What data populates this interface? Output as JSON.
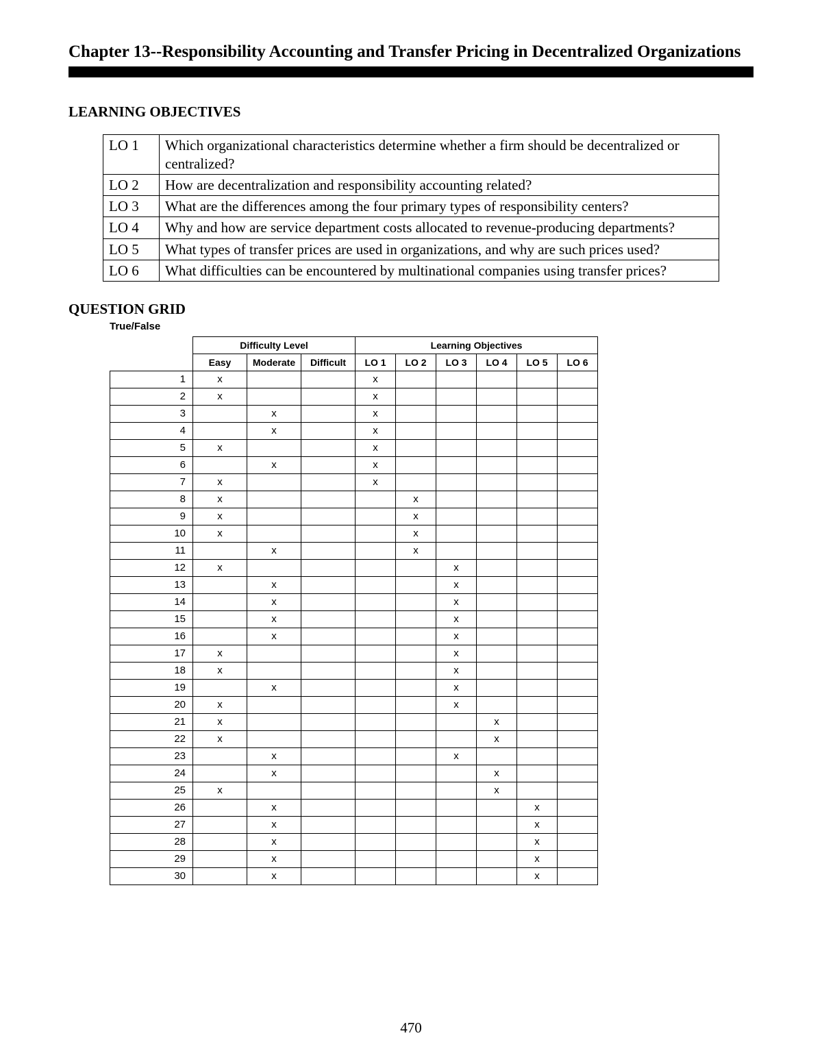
{
  "chapter_title": "Chapter 13--Responsibility Accounting and Transfer Pricing in Decentralized Organizations",
  "section_learning_objectives_heading": "LEARNING OBJECTIVES",
  "learning_objectives": [
    {
      "code": "LO 1",
      "text": "Which organizational characteristics determine whether a firm should be decentralized or centralized?"
    },
    {
      "code": "LO 2",
      "text": "How are decentralization and responsibility accounting related?"
    },
    {
      "code": "LO 3",
      "text": "What are the differences among the four primary types of responsibility centers?"
    },
    {
      "code": "LO 4",
      "text": "Why and how are service department costs allocated to revenue-producing departments?"
    },
    {
      "code": "LO 5",
      "text": "What types of transfer prices are used in organizations, and why are such prices used?"
    },
    {
      "code": "LO 6",
      "text": "What difficulties can be encountered by multinational companies using transfer prices?"
    }
  ],
  "question_grid_heading": "QUESTION GRID",
  "question_grid_subheading": "True/False",
  "grid": {
    "difficulty_group_label": "Difficulty Level",
    "lo_group_label": "Learning Objectives",
    "difficulty_columns": [
      "Easy",
      "Moderate",
      "Difficult"
    ],
    "lo_columns": [
      "LO 1",
      "LO 2",
      "LO 3",
      "LO 4",
      "LO 5",
      "LO 6"
    ],
    "mark_glyph": "x",
    "rows": [
      {
        "n": 1,
        "difficulty": "Easy",
        "lo": "LO 1"
      },
      {
        "n": 2,
        "difficulty": "Easy",
        "lo": "LO 1"
      },
      {
        "n": 3,
        "difficulty": "Moderate",
        "lo": "LO 1"
      },
      {
        "n": 4,
        "difficulty": "Moderate",
        "lo": "LO 1"
      },
      {
        "n": 5,
        "difficulty": "Easy",
        "lo": "LO 1"
      },
      {
        "n": 6,
        "difficulty": "Moderate",
        "lo": "LO 1"
      },
      {
        "n": 7,
        "difficulty": "Easy",
        "lo": "LO 1"
      },
      {
        "n": 8,
        "difficulty": "Easy",
        "lo": "LO 2"
      },
      {
        "n": 9,
        "difficulty": "Easy",
        "lo": "LO 2"
      },
      {
        "n": 10,
        "difficulty": "Easy",
        "lo": "LO 2"
      },
      {
        "n": 11,
        "difficulty": "Moderate",
        "lo": "LO 2"
      },
      {
        "n": 12,
        "difficulty": "Easy",
        "lo": "LO 3"
      },
      {
        "n": 13,
        "difficulty": "Moderate",
        "lo": "LO 3"
      },
      {
        "n": 14,
        "difficulty": "Moderate",
        "lo": "LO 3"
      },
      {
        "n": 15,
        "difficulty": "Moderate",
        "lo": "LO 3"
      },
      {
        "n": 16,
        "difficulty": "Moderate",
        "lo": "LO 3"
      },
      {
        "n": 17,
        "difficulty": "Easy",
        "lo": "LO 3"
      },
      {
        "n": 18,
        "difficulty": "Easy",
        "lo": "LO 3"
      },
      {
        "n": 19,
        "difficulty": "Moderate",
        "lo": "LO 3"
      },
      {
        "n": 20,
        "difficulty": "Easy",
        "lo": "LO 3"
      },
      {
        "n": 21,
        "difficulty": "Easy",
        "lo": "LO 4"
      },
      {
        "n": 22,
        "difficulty": "Easy",
        "lo": "LO 4"
      },
      {
        "n": 23,
        "difficulty": "Moderate",
        "lo": "LO 3"
      },
      {
        "n": 24,
        "difficulty": "Moderate",
        "lo": "LO 4"
      },
      {
        "n": 25,
        "difficulty": "Easy",
        "lo": "LO 4"
      },
      {
        "n": 26,
        "difficulty": "Moderate",
        "lo": "LO 5"
      },
      {
        "n": 27,
        "difficulty": "Moderate",
        "lo": "LO 5"
      },
      {
        "n": 28,
        "difficulty": "Moderate",
        "lo": "LO 5"
      },
      {
        "n": 29,
        "difficulty": "Moderate",
        "lo": "LO 5"
      },
      {
        "n": 30,
        "difficulty": "Moderate",
        "lo": "LO 5"
      }
    ]
  },
  "page_number": "470"
}
